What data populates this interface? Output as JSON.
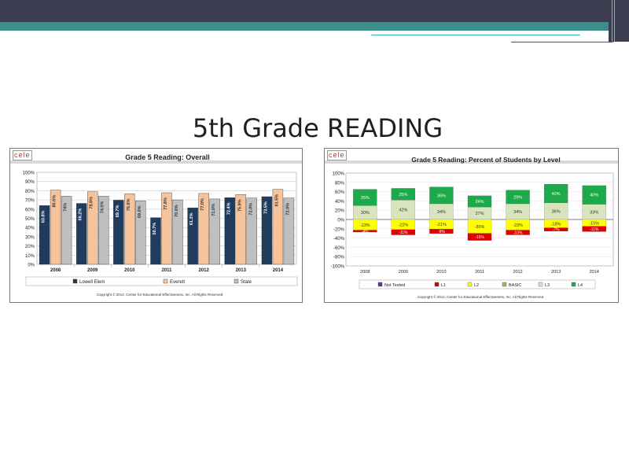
{
  "slide": {
    "title": "5th Grade READING"
  },
  "logo_text": "cele",
  "colors": {
    "lowell": "#1f3b5e",
    "everett": "#f7c39b",
    "state": "#bfbfbf",
    "not_tested": "#7030a0",
    "l1": "#e00000",
    "l2": "#ffff00",
    "basic": "#9bbb59",
    "l3": "#d7e4bd",
    "l4": "#1daa4a"
  },
  "chart_data": [
    {
      "type": "bar",
      "title": "Grade 5 Reading: Overall",
      "categories": [
        "2008",
        "2009",
        "2010",
        "2011",
        "2012",
        "2013",
        "2014"
      ],
      "ylim": [
        0,
        100
      ],
      "yticks": [
        "0%",
        "10%",
        "20%",
        "30%",
        "40%",
        "50%",
        "60%",
        "70%",
        "80%",
        "90%",
        "100%"
      ],
      "series": [
        {
          "name": "Lowell Elem",
          "values": [
            63.8,
            66.2,
            69.7,
            50.7,
            61.3,
            72.4,
            73.5
          ],
          "labels": [
            "63.8%",
            "66.2%",
            "69.7%",
            "50.7%",
            "61.3%",
            "72.4%",
            "73.5%"
          ]
        },
        {
          "name": "Everett",
          "values": [
            80.6,
            78.8,
            76.6,
            77.8,
            77.0,
            75.9,
            81.5
          ],
          "labels": [
            "80.6%",
            "78.8%",
            "76.6%",
            "77.8%",
            "77.0%",
            "75.9%",
            "81.5%"
          ]
        },
        {
          "name": "State",
          "values": [
            74.0,
            74.0,
            69.0,
            70.0,
            71.0,
            72.0,
            72.0
          ],
          "labels": [
            "74%",
            "74.0%",
            "69.0%",
            "70.0%",
            "71.0%",
            "72.0%",
            "72.0%"
          ]
        }
      ],
      "copyright": "Copyright © 2014, Center for Educational Effectiveness, Inc. All Rights Reserved"
    },
    {
      "type": "bar",
      "title": "Grade 5 Reading: Percent of Students by Level",
      "categories": [
        "2008",
        "2009",
        "2010",
        "2011",
        "2012",
        "2013",
        "2014"
      ],
      "ylim": [
        -100,
        100
      ],
      "yticks": [
        "-100%",
        "-80%",
        "-60%",
        "-40%",
        "-20%",
        "0%",
        "20%",
        "40%",
        "60%",
        "80%",
        "100%"
      ],
      "legend": [
        "Not Tested",
        "L1",
        "L2",
        "BASIC",
        "L3",
        "L4"
      ],
      "positive": {
        "l3": [
          30,
          42,
          34,
          27,
          34,
          36,
          33
        ],
        "l4": [
          35,
          25,
          36,
          24,
          29,
          40,
          40
        ]
      },
      "negative": {
        "l2": [
          -23,
          -22,
          -21,
          -30,
          -23,
          -18,
          -15
        ],
        "l1": [
          -4,
          -11,
          -9,
          -15,
          -10,
          -7,
          -11
        ]
      },
      "labels": {
        "l3": [
          "30%",
          "42%",
          "34%",
          "27%",
          "34%",
          "36%",
          "33%"
        ],
        "l4": [
          "35%",
          "25%",
          "36%",
          "24%",
          "29%",
          "40%",
          "40%"
        ],
        "l2": [
          "-23%",
          "-22%",
          "-21%",
          "-30%",
          "-23%",
          "-18%",
          "-15%"
        ],
        "l1": [
          "-4%",
          "-11%",
          "-9%",
          "-15%",
          "-10%",
          "-7%",
          "-11%"
        ]
      },
      "copyright": "Copyright © 2014, Center for Educational Effectiveness, Inc. All Rights Reserved"
    }
  ]
}
